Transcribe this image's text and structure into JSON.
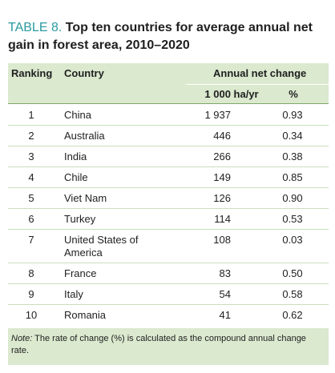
{
  "title": {
    "label": "TABLE 8.",
    "text": "Top ten countries for average annual net gain in forest area, 2010–2020"
  },
  "table": {
    "col_ranking": "Ranking",
    "col_country": "Country",
    "group_header": "Annual net change",
    "sub_abs": "1 000 ha/yr",
    "sub_pct": "%",
    "rows": [
      {
        "rank": "1",
        "country": "China",
        "abs": "1 937",
        "pct": "0.93"
      },
      {
        "rank": "2",
        "country": "Australia",
        "abs": "446",
        "pct": "0.34"
      },
      {
        "rank": "3",
        "country": "India",
        "abs": "266",
        "pct": "0.38"
      },
      {
        "rank": "4",
        "country": "Chile",
        "abs": "149",
        "pct": "0.85"
      },
      {
        "rank": "5",
        "country": "Viet Nam",
        "abs": "126",
        "pct": "0.90"
      },
      {
        "rank": "6",
        "country": "Turkey",
        "abs": "114",
        "pct": "0.53"
      },
      {
        "rank": "7",
        "country": "United States of America",
        "abs": "108",
        "pct": "0.03"
      },
      {
        "rank": "8",
        "country": "France",
        "abs": "83",
        "pct": "0.50"
      },
      {
        "rank": "9",
        "country": "Italy",
        "abs": "54",
        "pct": "0.58"
      },
      {
        "rank": "10",
        "country": "Romania",
        "abs": "41",
        "pct": "0.62"
      }
    ]
  },
  "note": {
    "label": "Note:",
    "text": "The rate of change (%) is calculated as the compound annual change rate."
  }
}
